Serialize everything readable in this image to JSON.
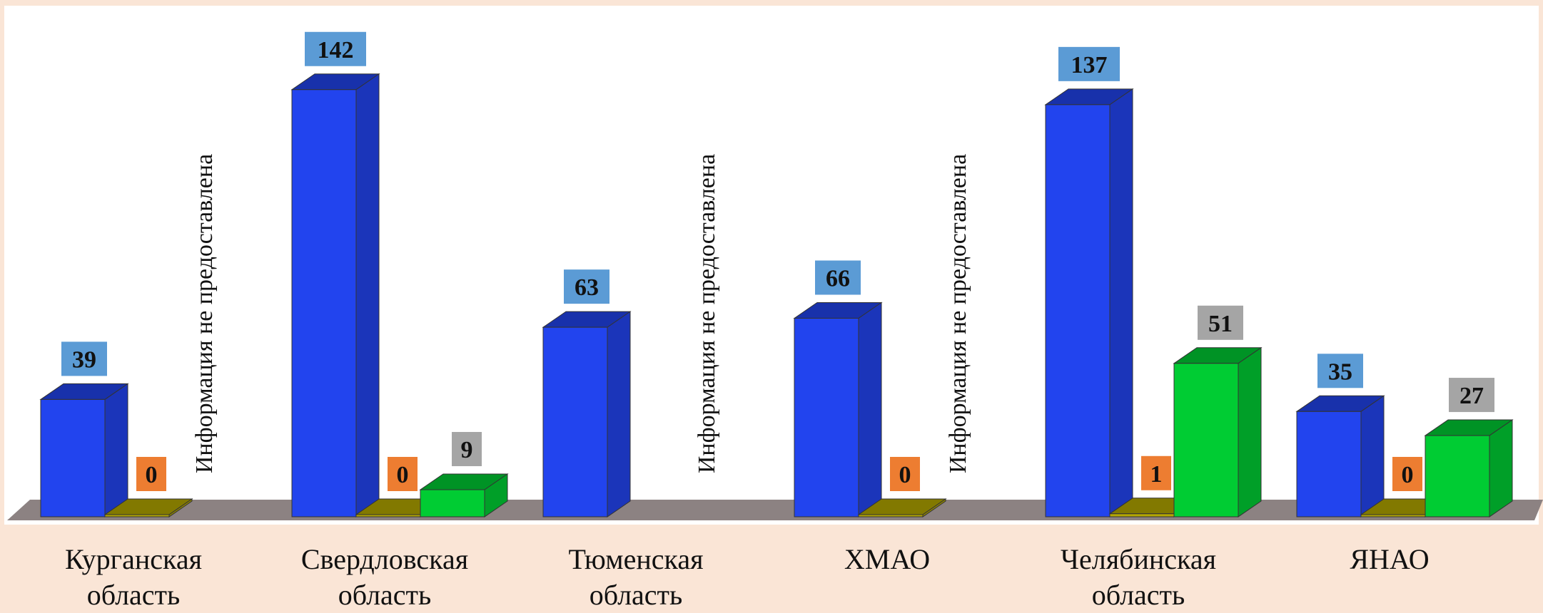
{
  "chart_data": {
    "type": "bar",
    "bar_style": "3d",
    "categories": [
      "Курганская область",
      "Свердловская область",
      "Тюменская область",
      "ХМАО",
      "Челябинская область",
      "ЯНАО"
    ],
    "series": [
      {
        "color": "#2244ee",
        "label_bg": "#5b9bd5",
        "values": [
          39,
          142,
          63,
          66,
          137,
          35
        ]
      },
      {
        "color": "#b5a800",
        "label_bg": "#ed7d31",
        "values": [
          0,
          0,
          null,
          0,
          1,
          0
        ]
      },
      {
        "color": "#00cc33",
        "label_bg": "#a5a5a5",
        "values": [
          null,
          9,
          null,
          null,
          51,
          27
        ]
      }
    ],
    "missing_note": "Информация не предоставлена",
    "missing_categories": [
      0,
      2,
      3
    ],
    "ylim": [
      0,
      142
    ],
    "floor_color": "#8c8282",
    "grid": false,
    "legend": false
  }
}
